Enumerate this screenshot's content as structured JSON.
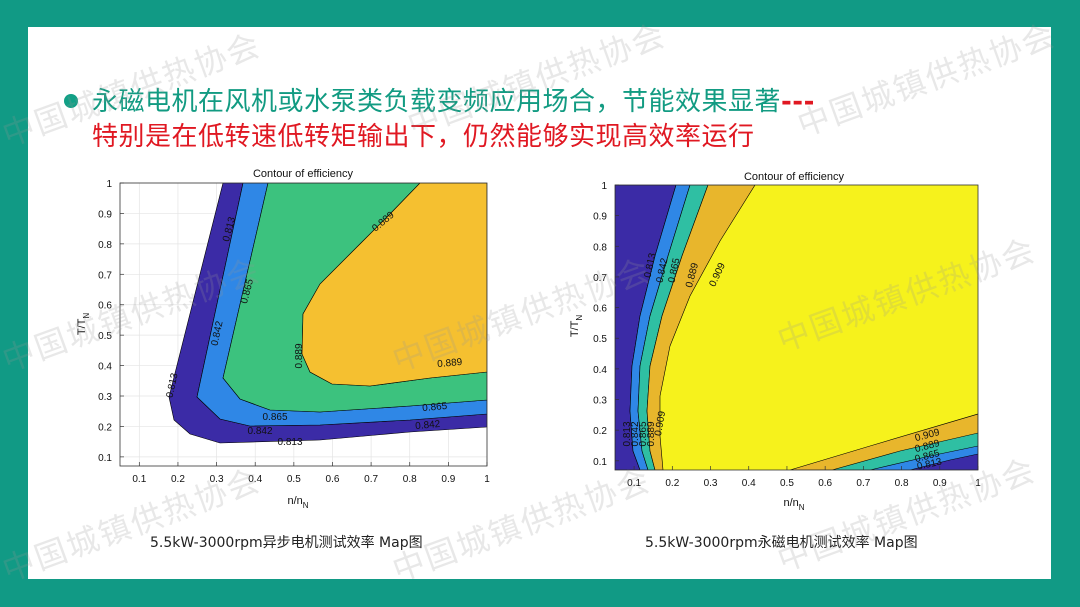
{
  "slide": {
    "title_line1": "永磁电机在风机或水泵类负载变频应用场合，节能效果显著",
    "title_dashes": "---",
    "title_line2": "特别是在低转速低转矩输出下，仍然能够实现高效率运行",
    "caption_left": "5.5kW-3000rpm异步电机测试效率 Map图",
    "caption_right": "5.5kW-3000rpm永磁电机测试效率 Map图",
    "watermark": "中国城镇供热协会"
  },
  "colors": {
    "frame": "#119a85",
    "title_green": "#129b82",
    "title_red": "#e01822",
    "level_navy": "#3b2ba6",
    "level_blue": "#2f87e6",
    "level_green": "#3cc27e",
    "level_teal": "#2fbfa3",
    "level_orange": "#f5c030",
    "level_yellow": "#f6f21c"
  },
  "chart_data": [
    {
      "type": "contour",
      "title": "Contour of efficiency",
      "xlabel": "n/n",
      "xlabel_sub": "N",
      "ylabel": "T/T",
      "ylabel_sub": "N",
      "xlim": [
        0.05,
        1.0
      ],
      "ylim": [
        0.07,
        1.0
      ],
      "xticks": [
        "0.1",
        "0.2",
        "0.3",
        "0.4",
        "0.5",
        "0.6",
        "0.7",
        "0.8",
        "0.9",
        "1"
      ],
      "yticks": [
        "0.1",
        "0.2",
        "0.3",
        "0.4",
        "0.5",
        "0.6",
        "0.7",
        "0.8",
        "0.9",
        "1"
      ],
      "levels": [
        0.813,
        0.842,
        0.865,
        0.889
      ],
      "contour_labels": [
        "0.813",
        "0.813",
        "0.813",
        "0.842",
        "0.842",
        "0.842",
        "0.865",
        "0.865",
        "0.865",
        "0.889",
        "0.889",
        "0.889"
      ],
      "grid": true
    },
    {
      "type": "contour",
      "title": "Contour of efficiency",
      "xlabel": "n/n",
      "xlabel_sub": "N",
      "ylabel": "T/T",
      "ylabel_sub": "N",
      "xlim": [
        0.05,
        1.0
      ],
      "ylim": [
        0.07,
        1.0
      ],
      "xticks": [
        "0.1",
        "0.2",
        "0.3",
        "0.4",
        "0.5",
        "0.6",
        "0.7",
        "0.8",
        "0.9",
        "1"
      ],
      "yticks": [
        "0.1",
        "0.2",
        "0.3",
        "0.4",
        "0.5",
        "0.6",
        "0.7",
        "0.8",
        "0.9",
        "1"
      ],
      "levels": [
        0.813,
        0.842,
        0.865,
        0.889,
        0.909
      ],
      "contour_labels": [
        "0.813",
        "0.842",
        "0.865",
        "0.889",
        "0.909",
        "0.909",
        "0.889",
        "0.865",
        "0.813",
        "0.813",
        "0.842",
        "0.865",
        "0.889",
        "0.909"
      ],
      "grid": true
    }
  ]
}
